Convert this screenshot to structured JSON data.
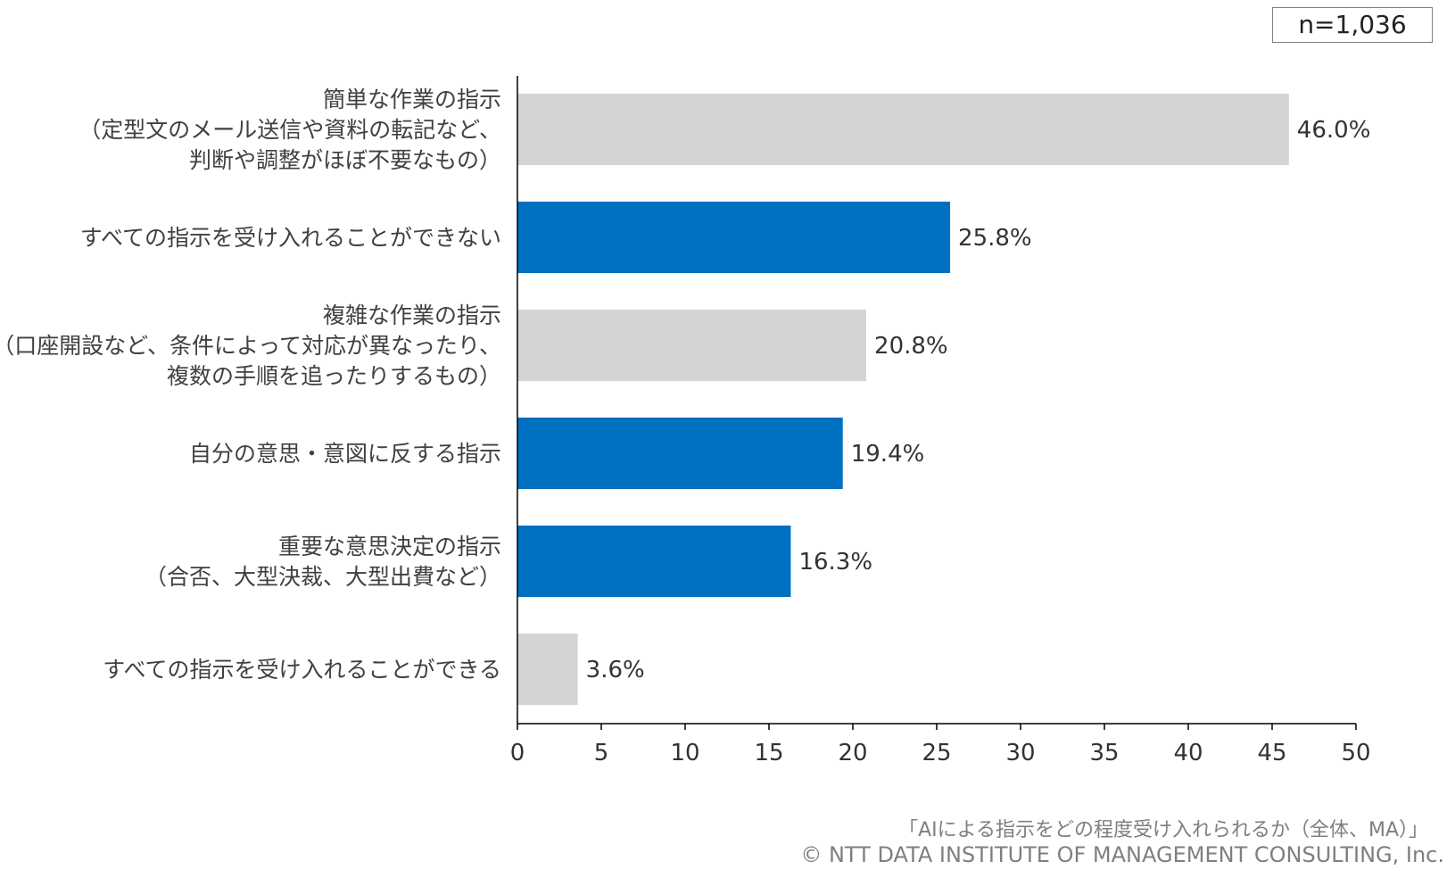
{
  "sample_size": "n=1,036",
  "chart_data": {
    "type": "bar",
    "orientation": "horizontal",
    "categories": [
      [
        "簡単な作業の指示",
        "（定型文のメール送信や資料の転記など、",
        "判断や調整がほぼ不要なもの）"
      ],
      [
        "すべての指示を受け入れることができない"
      ],
      [
        "複雑な作業の指示",
        "（口座開設など、条件によって対応が異なったり、",
        "複数の手順を追ったりするもの）"
      ],
      [
        "自分の意思・意図に反する指示"
      ],
      [
        "重要な意思決定の指示",
        "（合否、大型決裁、大型出費など）"
      ],
      [
        "すべての指示を受け入れることができる"
      ]
    ],
    "values": [
      46.0,
      25.8,
      20.8,
      19.4,
      16.3,
      3.6
    ],
    "value_labels": [
      "46.0%",
      "25.8%",
      "20.8%",
      "19.4%",
      "16.3%",
      "3.6%"
    ],
    "highlighted": [
      false,
      true,
      false,
      true,
      true,
      false
    ],
    "colors": {
      "default": "#d4d4d4",
      "highlight": "#0070c0"
    },
    "xlim": [
      0,
      50
    ],
    "xticks": [
      0,
      5,
      10,
      15,
      20,
      25,
      30,
      35,
      40,
      45,
      50
    ],
    "grid": false,
    "legend": "none"
  },
  "footer": {
    "caption": "「AIによる指示をどの程度受け入れられるか（全体、MA）」",
    "copyright": "© NTT DATA INSTITUTE OF MANAGEMENT CONSULTING, Inc."
  }
}
